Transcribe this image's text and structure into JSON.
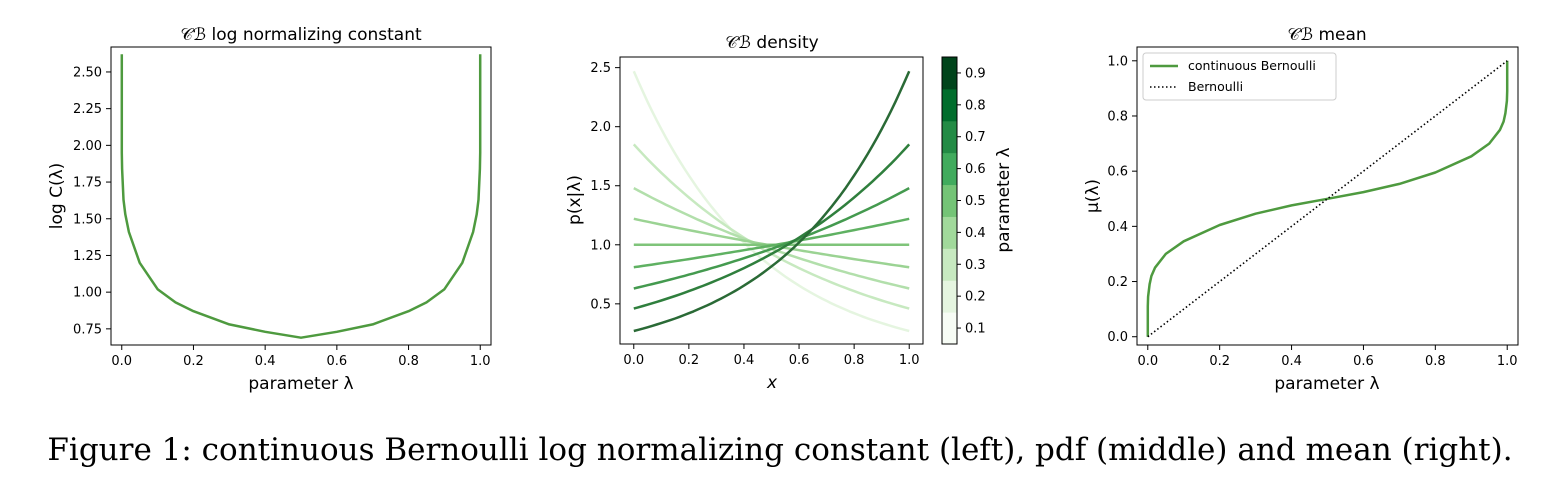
{
  "figure": {
    "caption": "Figure 1: continuous Bernoulli log normalizing constant (left), pdf (middle) and mean (right).",
    "colors": {
      "line_green": "#4e9a3f",
      "colormap": [
        "#f7fcf5",
        "#e5f5e0",
        "#c7e9c0",
        "#a1d99b",
        "#74c476",
        "#41ab5d",
        "#238b45",
        "#006d2c",
        "#00441b"
      ]
    }
  },
  "chart_data": [
    {
      "type": "line",
      "title": "𝒞ℬ log normalizing constant",
      "xlabel": "parameter λ",
      "ylabel": "log C(λ)",
      "xlim": [
        -0.03,
        1.03
      ],
      "ylim": [
        0.64,
        2.67
      ],
      "xticks": [
        0.0,
        0.2,
        0.4,
        0.6,
        0.8,
        1.0
      ],
      "xtick_labels": [
        "0.0",
        "0.2",
        "0.4",
        "0.6",
        "0.8",
        "1.0"
      ],
      "yticks": [
        0.75,
        1.0,
        1.25,
        1.5,
        1.75,
        2.0,
        2.25,
        2.5
      ],
      "ytick_labels": [
        "0.75",
        "1.00",
        "1.25",
        "1.50",
        "1.75",
        "2.00",
        "2.25",
        "2.50"
      ],
      "series": [
        {
          "x": [
            0.0,
            0.0,
            0.001,
            0.005,
            0.01,
            0.02,
            0.05,
            0.1,
            0.15,
            0.2,
            0.3,
            0.4,
            0.5,
            0.6,
            0.7,
            0.8,
            0.85,
            0.9,
            0.95,
            0.98,
            0.99,
            0.995,
            0.999,
            1.0,
            1.0
          ],
          "y": [
            2.62,
            1.95,
            1.84,
            1.63,
            1.53,
            1.41,
            1.2,
            1.02,
            0.93,
            0.87,
            0.78,
            0.73,
            0.69,
            0.73,
            0.78,
            0.87,
            0.93,
            1.02,
            1.2,
            1.41,
            1.53,
            1.63,
            1.84,
            1.95,
            2.62
          ]
        }
      ]
    },
    {
      "type": "line",
      "title": "𝒞ℬ density",
      "xlabel": "x",
      "ylabel": "p(x|λ)",
      "xlim": [
        -0.05,
        1.05
      ],
      "ylim": [
        0.16,
        2.59
      ],
      "xticks": [
        0.0,
        0.2,
        0.4,
        0.6,
        0.8,
        1.0
      ],
      "xtick_labels": [
        "0.0",
        "0.2",
        "0.4",
        "0.6",
        "0.8",
        "1.0"
      ],
      "yticks": [
        0.5,
        1.0,
        1.5,
        2.0,
        2.5
      ],
      "ytick_labels": [
        "0.5",
        "1.0",
        "1.5",
        "2.0",
        "2.5"
      ],
      "colorbar": {
        "label": "parameter λ",
        "ticks": [
          0.1,
          0.2,
          0.3,
          0.4,
          0.5,
          0.6,
          0.7,
          0.8,
          0.9
        ],
        "tick_labels": [
          "0.1",
          "0.2",
          "0.3",
          "0.4",
          "0.5",
          "0.6",
          "0.7",
          "0.8",
          "0.9"
        ],
        "range": [
          0.05,
          0.95
        ]
      },
      "series": [
        {
          "lambda": 0.1,
          "x": [
            0.0,
            1.0
          ],
          "y": [
            2.47,
            0.27
          ],
          "color": "#e5f5e0"
        },
        {
          "lambda": 0.2,
          "x": [
            0.0,
            1.0
          ],
          "y": [
            1.85,
            0.46
          ],
          "color": "#c7e9c0"
        },
        {
          "lambda": 0.3,
          "x": [
            0.0,
            1.0
          ],
          "y": [
            1.48,
            0.63
          ],
          "color": "#b2dfab"
        },
        {
          "lambda": 0.4,
          "x": [
            0.0,
            1.0
          ],
          "y": [
            1.22,
            0.81
          ],
          "color": "#9bd393"
        },
        {
          "lambda": 0.5,
          "x": [
            0.0,
            1.0
          ],
          "y": [
            1.0,
            1.0
          ],
          "color": "#7fc47a"
        },
        {
          "lambda": 0.6,
          "x": [
            0.0,
            1.0
          ],
          "y": [
            0.81,
            1.22
          ],
          "color": "#5fb162"
        },
        {
          "lambda": 0.7,
          "x": [
            0.0,
            1.0
          ],
          "y": [
            0.63,
            1.48
          ],
          "color": "#449a4f"
        },
        {
          "lambda": 0.8,
          "x": [
            0.0,
            1.0
          ],
          "y": [
            0.46,
            1.85
          ],
          "color": "#2f7f3d"
        },
        {
          "lambda": 0.9,
          "x": [
            0.0,
            1.0
          ],
          "y": [
            0.27,
            2.47
          ],
          "color": "#2a6a36"
        }
      ]
    },
    {
      "type": "line",
      "title": "𝒞ℬ mean",
      "xlabel": "parameter λ",
      "ylabel": "μ(λ)",
      "xlim": [
        -0.03,
        1.03
      ],
      "ylim": [
        -0.03,
        1.05
      ],
      "xticks": [
        0.0,
        0.2,
        0.4,
        0.6,
        0.8,
        1.0
      ],
      "xtick_labels": [
        "0.0",
        "0.2",
        "0.4",
        "0.6",
        "0.8",
        "1.0"
      ],
      "yticks": [
        0.0,
        0.2,
        0.4,
        0.6,
        0.8,
        1.0
      ],
      "ytick_labels": [
        "0.0",
        "0.2",
        "0.4",
        "0.6",
        "0.8",
        "1.0"
      ],
      "legend": {
        "placement": "top-left"
      },
      "series": [
        {
          "name": "continuous Bernoulli",
          "style": "solid",
          "x": [
            0.0,
            0.0,
            0.001,
            0.005,
            0.01,
            0.02,
            0.05,
            0.1,
            0.2,
            0.3,
            0.4,
            0.5,
            0.6,
            0.7,
            0.8,
            0.9,
            0.95,
            0.98,
            0.99,
            0.995,
            0.999,
            1.0,
            1.0
          ],
          "y": [
            0.0,
            0.11,
            0.145,
            0.19,
            0.22,
            0.25,
            0.3,
            0.346,
            0.405,
            0.446,
            0.476,
            0.5,
            0.524,
            0.554,
            0.595,
            0.654,
            0.7,
            0.75,
            0.78,
            0.81,
            0.855,
            0.89,
            1.0
          ]
        },
        {
          "name": "Bernoulli",
          "style": "dotted",
          "x": [
            0.0,
            1.0
          ],
          "y": [
            0.0,
            1.0
          ]
        }
      ]
    }
  ]
}
